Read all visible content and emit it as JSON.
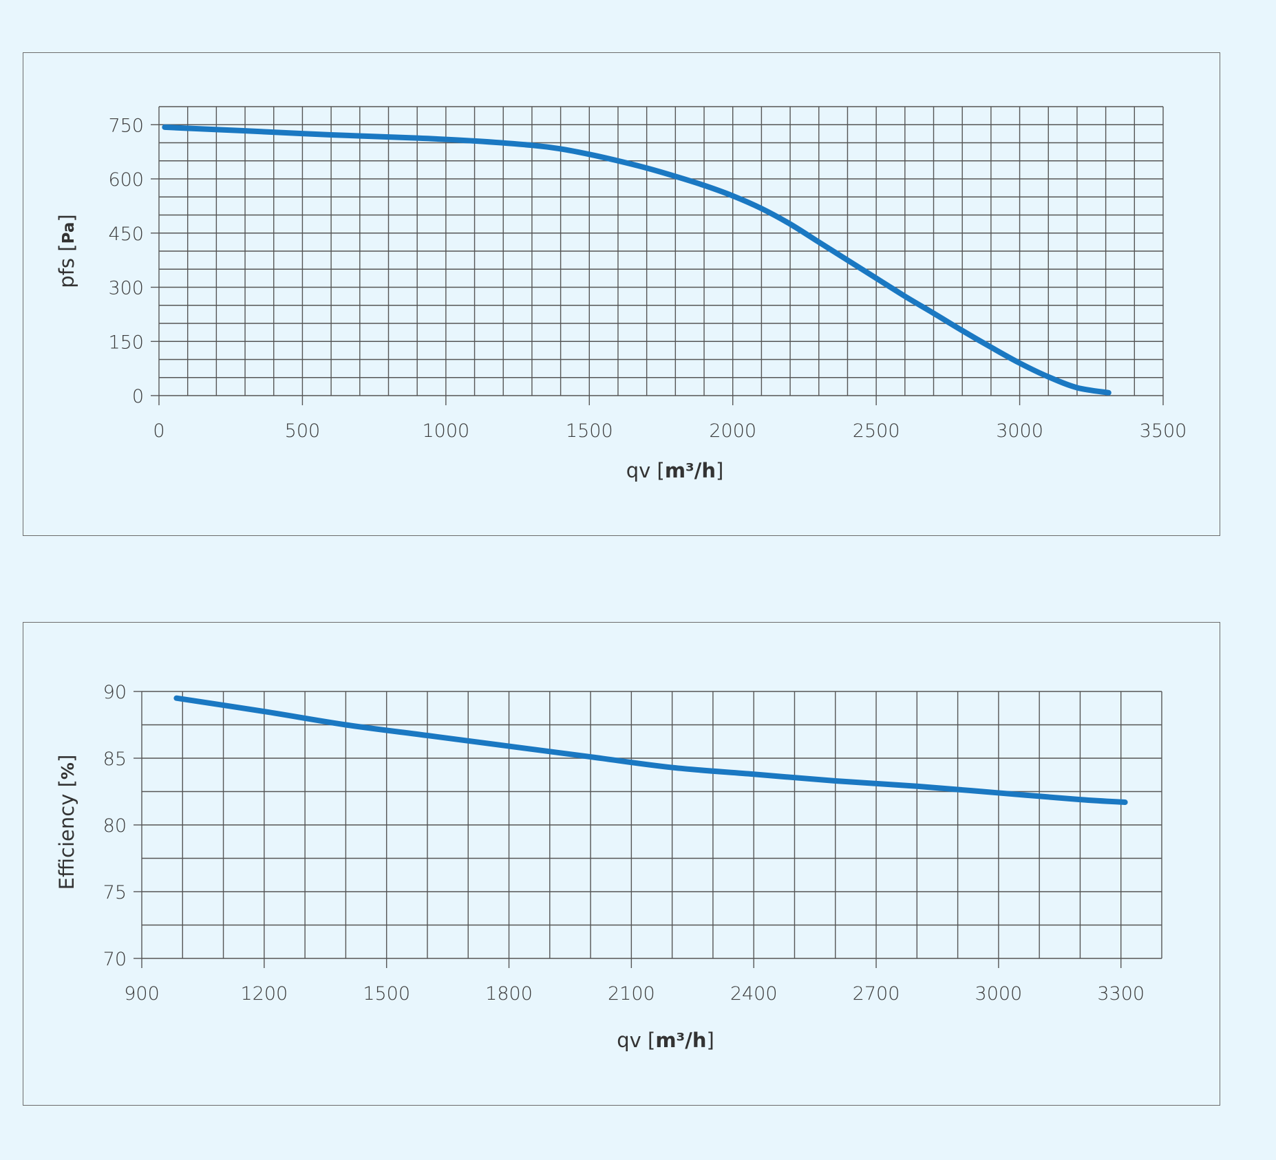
{
  "colors": {
    "background": "#e8f6fd",
    "series": "#1a78c2",
    "grid": "#555555",
    "border": "#6b6b6b"
  },
  "chart_data": [
    {
      "type": "line",
      "title": "",
      "xlabel": "qv",
      "xlabel_unit": "m³/h",
      "ylabel": "pfs",
      "ylabel_unit": "Pa",
      "xlim": [
        0,
        3500
      ],
      "ylim": [
        0,
        800
      ],
      "x_ticks": [
        0,
        500,
        1000,
        1500,
        2000,
        2500,
        3000,
        3500
      ],
      "x_tick_labels": [
        "0",
        "500",
        "1000",
        "1500",
        "2000",
        "2500",
        "3000",
        "3500"
      ],
      "y_ticks": [
        0,
        150,
        300,
        450,
        600,
        750
      ],
      "y_tick_labels": [
        "0",
        "150",
        "300",
        "450",
        "600",
        "750"
      ],
      "grid": true,
      "x_minor_step": 100,
      "y_minor_step": 50,
      "series": [
        {
          "x": [
            20,
            300,
            600,
            900,
            1100,
            1300,
            1400,
            1500,
            1600,
            1700,
            1800,
            1900,
            2000,
            2100,
            2200,
            2300,
            2400,
            2500,
            2600,
            2700,
            2800,
            2900,
            3000,
            3100,
            3200,
            3310
          ],
          "values": [
            743,
            733,
            722,
            713,
            705,
            693,
            683,
            668,
            650,
            630,
            607,
            582,
            553,
            518,
            475,
            425,
            375,
            325,
            275,
            228,
            180,
            134,
            90,
            52,
            22,
            8
          ]
        }
      ]
    },
    {
      "type": "line",
      "title": "",
      "xlabel": "qv",
      "xlabel_unit": "m³/h",
      "ylabel": "Efficiency",
      "ylabel_unit": "%",
      "xlim": [
        900,
        3400
      ],
      "ylim": [
        70,
        90
      ],
      "x_ticks": [
        900,
        1200,
        1500,
        1800,
        2100,
        2400,
        2700,
        3000,
        3300
      ],
      "x_tick_labels": [
        "900",
        "1200",
        "1500",
        "1800",
        "2100",
        "2400",
        "2700",
        "3000",
        "3300"
      ],
      "y_ticks": [
        70,
        75,
        80,
        85,
        90
      ],
      "y_tick_labels": [
        "70",
        "75",
        "80",
        "85",
        "90"
      ],
      "grid": true,
      "x_minor_step": 100,
      "y_minor_step": 2.5,
      "series": [
        {
          "x": [
            985,
            1200,
            1400,
            1600,
            1800,
            2000,
            2200,
            2400,
            2600,
            2800,
            3000,
            3200,
            3310
          ],
          "values": [
            89.5,
            88.5,
            87.5,
            86.7,
            85.9,
            85.1,
            84.3,
            83.8,
            83.3,
            82.9,
            82.4,
            81.9,
            81.7
          ]
        }
      ]
    }
  ]
}
